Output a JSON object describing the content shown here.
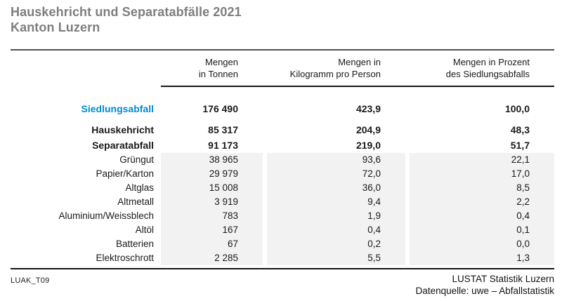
{
  "title": {
    "line1": "Hauskehricht und Separatabfälle 2021",
    "line2": "Kanton Luzern"
  },
  "table": {
    "columns": [
      {
        "line1": "Mengen",
        "line2": "in Tonnen"
      },
      {
        "line1": "Mengen in",
        "line2": "Kilogramm pro Person"
      },
      {
        "line1": "Mengen in Prozent",
        "line2": "des Siedlungsabfalls"
      }
    ],
    "rows": [
      {
        "label": "Siedlungsabfall",
        "tonnen": "176 490",
        "kg": "423,9",
        "prozent": "100,0",
        "style": "total"
      },
      {
        "label": "Hauskehricht",
        "tonnen": "85 317",
        "kg": "204,9",
        "prozent": "48,3",
        "style": "bold"
      },
      {
        "label": "Separatabfall",
        "tonnen": "91 173",
        "kg": "219,0",
        "prozent": "51,7",
        "style": "bold"
      },
      {
        "label": "Grüngut",
        "tonnen": "38 965",
        "kg": "93,6",
        "prozent": "22,1",
        "style": "detail"
      },
      {
        "label": "Papier/Karton",
        "tonnen": "29 979",
        "kg": "72,0",
        "prozent": "17,0",
        "style": "detail"
      },
      {
        "label": "Altglas",
        "tonnen": "15 008",
        "kg": "36,0",
        "prozent": "8,5",
        "style": "detail"
      },
      {
        "label": "Altmetall",
        "tonnen": "3 919",
        "kg": "9,4",
        "prozent": "2,2",
        "style": "detail"
      },
      {
        "label": "Aluminium/Weissblech",
        "tonnen": "783",
        "kg": "1,9",
        "prozent": "0,4",
        "style": "detail"
      },
      {
        "label": "Altöl",
        "tonnen": "167",
        "kg": "0,4",
        "prozent": "0,1",
        "style": "detail"
      },
      {
        "label": "Batterien",
        "tonnen": "67",
        "kg": "0,2",
        "prozent": "0,0",
        "style": "detail"
      },
      {
        "label": "Elektroschrott",
        "tonnen": "2 285",
        "kg": "5,5",
        "prozent": "1,3",
        "style": "detail"
      }
    ]
  },
  "footer": {
    "left": "LUAK_T09",
    "right_line1": "LUSTAT Statistik Luzern",
    "right_line2": "Datenquelle: uwe – Abfallstatistik"
  },
  "colors": {
    "accent_blue": "#008ccf",
    "title_gray": "#7e7e7e",
    "row_shade": "#f2f2f2",
    "rule_dark": "#161616"
  }
}
